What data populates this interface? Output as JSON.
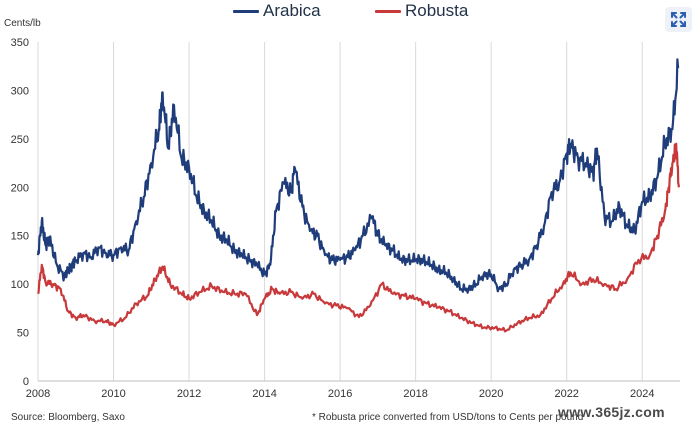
{
  "header": {
    "expand_icon": "expand-arrows-icon"
  },
  "footer": {
    "source": "Source: Bloomberg, Saxo",
    "note": "* Robusta price converted from USD/tons to Cents per pound",
    "watermark": "www.365jz.com"
  },
  "colors": {
    "arabica": "#1f3d7a",
    "robusta": "#c8393b",
    "grid": "#d9d9d9"
  },
  "chart_data": {
    "type": "line",
    "title": "",
    "ylabel": "Cents/lb",
    "xlabel": "",
    "xlim": [
      2008,
      2025
    ],
    "ylim": [
      0,
      350
    ],
    "x_ticks": [
      "2008",
      "2010",
      "2012",
      "2014",
      "2016",
      "2018",
      "2020",
      "2022",
      "2024"
    ],
    "y_ticks": [
      "0",
      "50",
      "100",
      "150",
      "200",
      "250",
      "300",
      "350"
    ],
    "legend": "top-center",
    "grid": "vertical",
    "series": [
      {
        "name": "Arabica",
        "x": [
          2008.0,
          2008.1,
          2008.2,
          2008.3,
          2008.5,
          2008.7,
          2008.8,
          2008.9,
          2009.0,
          2009.2,
          2009.4,
          2009.6,
          2009.8,
          2010.0,
          2010.2,
          2010.4,
          2010.6,
          2010.8,
          2011.0,
          2011.2,
          2011.3,
          2011.45,
          2011.6,
          2011.8,
          2012.0,
          2012.2,
          2012.4,
          2012.6,
          2012.8,
          2013.0,
          2013.2,
          2013.4,
          2013.6,
          2013.8,
          2014.0,
          2014.15,
          2014.3,
          2014.5,
          2014.7,
          2014.8,
          2015.0,
          2015.2,
          2015.4,
          2015.6,
          2015.8,
          2016.0,
          2016.2,
          2016.4,
          2016.6,
          2016.85,
          2017.0,
          2017.2,
          2017.4,
          2017.6,
          2017.8,
          2018.0,
          2018.2,
          2018.4,
          2018.6,
          2018.8,
          2019.0,
          2019.2,
          2019.4,
          2019.6,
          2019.8,
          2020.0,
          2020.2,
          2020.4,
          2020.6,
          2020.8,
          2021.0,
          2021.2,
          2021.4,
          2021.6,
          2021.8,
          2022.0,
          2022.1,
          2022.3,
          2022.5,
          2022.7,
          2022.8,
          2023.0,
          2023.2,
          2023.4,
          2023.6,
          2023.8,
          2024.0,
          2024.2,
          2024.4,
          2024.6,
          2024.8,
          2024.95
        ],
        "values": [
          130,
          165,
          140,
          148,
          120,
          108,
          115,
          120,
          125,
          132,
          128,
          138,
          132,
          130,
          138,
          135,
          165,
          190,
          225,
          260,
          298,
          240,
          285,
          230,
          220,
          190,
          175,
          165,
          150,
          145,
          135,
          130,
          125,
          120,
          110,
          120,
          175,
          205,
          195,
          220,
          180,
          155,
          150,
          130,
          125,
          125,
          128,
          135,
          150,
          170,
          150,
          140,
          135,
          125,
          125,
          125,
          125,
          120,
          115,
          112,
          105,
          95,
          95,
          100,
          110,
          110,
          95,
          100,
          115,
          120,
          125,
          140,
          160,
          195,
          205,
          235,
          245,
          230,
          225,
          215,
          240,
          170,
          165,
          180,
          160,
          155,
          185,
          190,
          210,
          245,
          260,
          323
        ]
      },
      {
        "name": "Robusta",
        "x": [
          2008.0,
          2008.1,
          2008.2,
          2008.4,
          2008.6,
          2008.8,
          2009.0,
          2009.2,
          2009.5,
          2009.8,
          2010.0,
          2010.3,
          2010.6,
          2010.9,
          2011.1,
          2011.3,
          2011.5,
          2011.8,
          2012.0,
          2012.3,
          2012.6,
          2012.9,
          2013.2,
          2013.5,
          2013.8,
          2014.0,
          2014.2,
          2014.4,
          2014.7,
          2015.0,
          2015.3,
          2015.6,
          2015.9,
          2016.2,
          2016.5,
          2016.8,
          2017.1,
          2017.4,
          2017.7,
          2018.0,
          2018.3,
          2018.6,
          2018.9,
          2019.2,
          2019.5,
          2019.8,
          2020.1,
          2020.4,
          2020.7,
          2021.0,
          2021.3,
          2021.6,
          2021.9,
          2022.1,
          2022.4,
          2022.7,
          2023.0,
          2023.3,
          2023.6,
          2023.9,
          2024.2,
          2024.4,
          2024.6,
          2024.7,
          2024.8,
          2024.9,
          2024.97
        ],
        "values": [
          90,
          120,
          102,
          100,
          95,
          72,
          65,
          68,
          62,
          62,
          58,
          65,
          80,
          88,
          105,
          118,
          100,
          90,
          85,
          92,
          98,
          92,
          90,
          90,
          68,
          85,
          95,
          90,
          92,
          85,
          90,
          80,
          78,
          75,
          66,
          78,
          100,
          90,
          88,
          85,
          80,
          76,
          72,
          65,
          60,
          55,
          55,
          52,
          60,
          65,
          68,
          85,
          100,
          112,
          100,
          105,
          100,
          95,
          105,
          125,
          130,
          150,
          175,
          200,
          225,
          245,
          200
        ]
      }
    ]
  }
}
